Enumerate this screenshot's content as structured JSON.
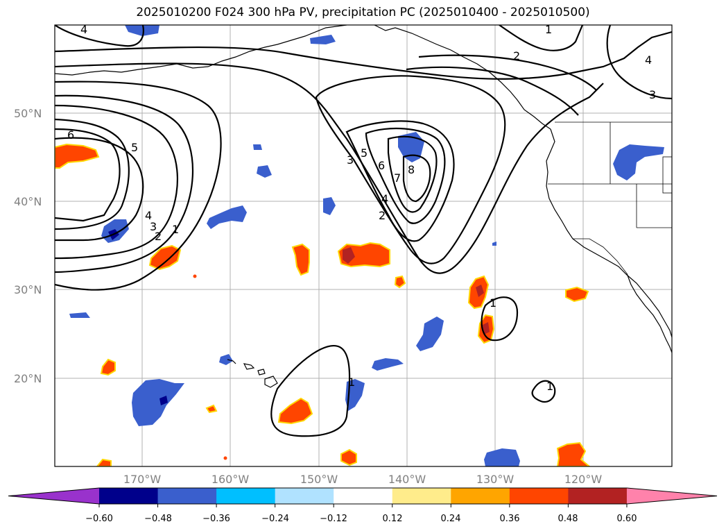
{
  "title": "2025010200 F024 300 hPa PV, precipitation PC (2025010400 - 2025010500)",
  "map": {
    "lon_labels": [
      "170°W",
      "160°W",
      "150°W",
      "140°W",
      "130°W",
      "120°W"
    ],
    "lat_labels": [
      "50°N",
      "40°N",
      "30°N",
      "20°N"
    ],
    "grid": true,
    "projection": "PlateCarree"
  },
  "contours": {
    "field": "300 hPa PV",
    "color": "#000000",
    "labels": [
      "4",
      "1",
      "2",
      "4",
      "3",
      "6",
      "5",
      "4",
      "3",
      "2",
      "1",
      "3",
      "5",
      "6",
      "7",
      "8",
      "4",
      "2",
      "1",
      "1",
      "1"
    ]
  },
  "colorbar": {
    "ticks": [
      "−0.60",
      "−0.48",
      "−0.36",
      "−0.24",
      "−0.12",
      "0.12",
      "0.24",
      "0.36",
      "0.48",
      "0.60"
    ],
    "colors": [
      "#9932cc",
      "#00008b",
      "#3a5fcd",
      "#00bfff",
      "#b0e2ff",
      "#ffffff",
      "#ffec8b",
      "#ffa500",
      "#ff4500",
      "#b22222",
      "#ff82ab"
    ]
  }
}
